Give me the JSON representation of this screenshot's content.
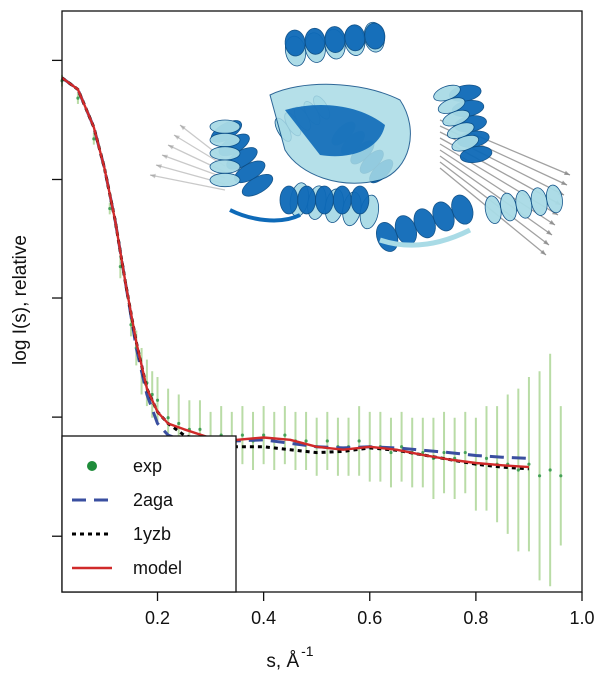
{
  "chart_data": {
    "type": "line",
    "xlabel": "s, Å",
    "xlabel_superscript": "-1",
    "ylabel": "log I(s), relative",
    "xlim": [
      0.02,
      1.0
    ],
    "ylim": [
      0,
      1
    ],
    "x_ticks": [
      0.2,
      0.4,
      0.6,
      0.8,
      1.0
    ],
    "x_tick_labels": [
      "0.2",
      "0.4",
      "0.6",
      "0.8",
      "1.0"
    ],
    "y_ticks": [
      0.096,
      0.301,
      0.506,
      0.71,
      0.915
    ],
    "grid": false,
    "legend": "bottom-left",
    "inset": "protein-structure-overlay",
    "colors": {
      "exp": "#1e8c3a",
      "exp_error": "#b9dca6",
      "2aga": "#3a4fa0",
      "1yzb": "#000000",
      "model": "#d02a2a",
      "ribbon_dark": "#0e6ab8",
      "ribbon_light": "#a9dbe6",
      "arrow": "#8a8a8a"
    },
    "series": [
      {
        "name": "exp",
        "style": "points-with-error-bars",
        "x": [
          0.02,
          0.05,
          0.08,
          0.11,
          0.13,
          0.15,
          0.16,
          0.17,
          0.18,
          0.19,
          0.2,
          0.22,
          0.24,
          0.26,
          0.28,
          0.3,
          0.32,
          0.34,
          0.36,
          0.38,
          0.4,
          0.42,
          0.44,
          0.46,
          0.48,
          0.5,
          0.52,
          0.54,
          0.56,
          0.58,
          0.6,
          0.62,
          0.64,
          0.66,
          0.68,
          0.7,
          0.72,
          0.74,
          0.76,
          0.78,
          0.8,
          0.82,
          0.84,
          0.86,
          0.88,
          0.9,
          0.92,
          0.94,
          0.96
        ],
        "values": [
          0.88,
          0.85,
          0.78,
          0.66,
          0.56,
          0.46,
          0.42,
          0.38,
          0.36,
          0.34,
          0.33,
          0.3,
          0.29,
          0.28,
          0.28,
          0.26,
          0.27,
          0.26,
          0.27,
          0.26,
          0.27,
          0.26,
          0.27,
          0.26,
          0.26,
          0.25,
          0.26,
          0.25,
          0.25,
          0.26,
          0.25,
          0.25,
          0.24,
          0.25,
          0.24,
          0.24,
          0.23,
          0.24,
          0.23,
          0.24,
          0.22,
          0.23,
          0.22,
          0.22,
          0.21,
          0.22,
          0.2,
          0.21,
          0.2
        ],
        "errors": [
          0.01,
          0.01,
          0.01,
          0.01,
          0.02,
          0.02,
          0.03,
          0.04,
          0.04,
          0.04,
          0.04,
          0.05,
          0.05,
          0.05,
          0.05,
          0.05,
          0.05,
          0.05,
          0.05,
          0.05,
          0.05,
          0.05,
          0.05,
          0.05,
          0.05,
          0.05,
          0.05,
          0.05,
          0.05,
          0.06,
          0.06,
          0.06,
          0.06,
          0.06,
          0.06,
          0.06,
          0.07,
          0.07,
          0.07,
          0.07,
          0.08,
          0.09,
          0.1,
          0.12,
          0.14,
          0.15,
          0.18,
          0.2,
          0.12
        ]
      },
      {
        "name": "2aga",
        "style": "dashed",
        "x": [
          0.02,
          0.05,
          0.08,
          0.1,
          0.12,
          0.14,
          0.16,
          0.18,
          0.2,
          0.22,
          0.25,
          0.3,
          0.35,
          0.4,
          0.45,
          0.5,
          0.55,
          0.6,
          0.65,
          0.7,
          0.75,
          0.8,
          0.85,
          0.9
        ],
        "values": [
          0.885,
          0.865,
          0.8,
          0.73,
          0.64,
          0.53,
          0.42,
          0.34,
          0.29,
          0.27,
          0.26,
          0.255,
          0.26,
          0.262,
          0.256,
          0.25,
          0.248,
          0.25,
          0.248,
          0.244,
          0.24,
          0.235,
          0.232,
          0.23
        ]
      },
      {
        "name": "1yzb",
        "style": "dotted",
        "x": [
          0.02,
          0.05,
          0.08,
          0.1,
          0.12,
          0.14,
          0.16,
          0.18,
          0.2,
          0.22,
          0.25,
          0.3,
          0.35,
          0.4,
          0.45,
          0.5,
          0.55,
          0.6,
          0.65,
          0.7,
          0.75,
          0.8,
          0.85,
          0.9
        ],
        "values": [
          0.885,
          0.865,
          0.8,
          0.73,
          0.64,
          0.53,
          0.43,
          0.35,
          0.31,
          0.29,
          0.27,
          0.255,
          0.25,
          0.25,
          0.245,
          0.24,
          0.242,
          0.248,
          0.244,
          0.236,
          0.228,
          0.22,
          0.215,
          0.212
        ]
      },
      {
        "name": "model",
        "style": "solid",
        "x": [
          0.02,
          0.05,
          0.08,
          0.1,
          0.12,
          0.14,
          0.16,
          0.18,
          0.2,
          0.22,
          0.25,
          0.3,
          0.35,
          0.4,
          0.45,
          0.5,
          0.55,
          0.6,
          0.65,
          0.7,
          0.75,
          0.8,
          0.85,
          0.9
        ],
        "values": [
          0.885,
          0.865,
          0.8,
          0.73,
          0.64,
          0.53,
          0.43,
          0.35,
          0.31,
          0.29,
          0.28,
          0.265,
          0.262,
          0.266,
          0.262,
          0.25,
          0.245,
          0.25,
          0.245,
          0.236,
          0.228,
          0.222,
          0.218,
          0.215
        ]
      }
    ]
  }
}
